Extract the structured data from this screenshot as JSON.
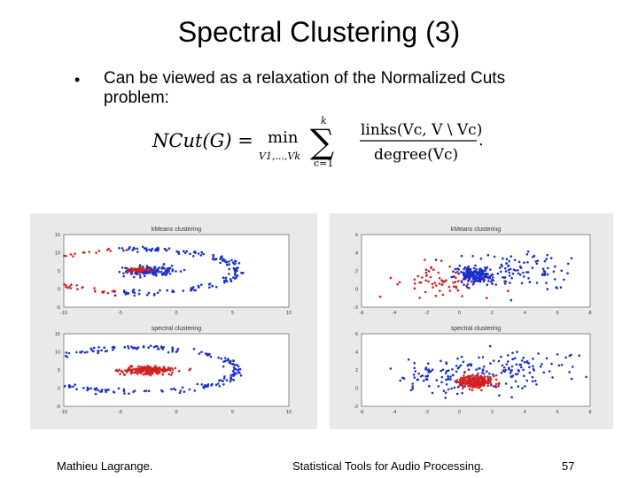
{
  "slide": {
    "title": "Spectral Clustering (3)",
    "bullet": "Can be viewed as a relaxation of the Normalized Cuts problem:",
    "formula": {
      "lhs": "NCut(G) =",
      "min": "min",
      "min_subscript": "V1,...,Vk",
      "sum_upper": "k",
      "sum_lower": "c=1",
      "numerator": "links(Vc, V \\ Vc)",
      "denominator": "degree(Vc)"
    },
    "footer": {
      "author": "Mathieu Lagrange.",
      "course": "Statistical Tools for Audio Processing.",
      "page": "57"
    }
  },
  "colors": {
    "red": "#d42020",
    "blue": "#1a2fc8",
    "panel": "#e9e9e9"
  },
  "chart_data": [
    {
      "type": "scatter",
      "title": "kMeans clustering",
      "xlim": [
        -10,
        10
      ],
      "ylim": [
        -5,
        15
      ],
      "xticks": [
        "-10",
        "-5",
        "0",
        "5",
        "10"
      ],
      "yticks": [
        "15",
        "10",
        "5",
        "0",
        "-5"
      ],
      "series": [
        {
          "color": "red",
          "shape": "ring-left",
          "cx": -3.5,
          "cy": 5,
          "rx": 9,
          "ry": 6,
          "n": 95,
          "angle_from": 100,
          "angle_to": 260
        },
        {
          "color": "blue",
          "shape": "ring-right",
          "cx": -3.5,
          "cy": 5,
          "rx": 9,
          "ry": 6,
          "n": 150,
          "angle_from": -100,
          "angle_to": 100
        },
        {
          "color": "blue",
          "shape": "blob",
          "cx": -2.5,
          "cy": 5,
          "sx": 1.2,
          "sy": 0.6,
          "n": 150
        },
        {
          "color": "red",
          "shape": "blob",
          "cx": -3.5,
          "cy": 5.2,
          "sx": 0.6,
          "sy": 0.35,
          "n": 40
        }
      ]
    },
    {
      "type": "scatter",
      "title": "kMeans clustering",
      "xlim": [
        -6,
        8
      ],
      "ylim": [
        -2,
        6
      ],
      "xticks": [
        "-6",
        "-4",
        "-2",
        "0",
        "2",
        "4",
        "6",
        "8"
      ],
      "yticks": [
        "6",
        "4",
        "2",
        "0",
        "-2"
      ],
      "series": [
        {
          "color": "red",
          "shape": "blob",
          "cx": -1.5,
          "cy": 0.8,
          "sx": 1.6,
          "sy": 0.9,
          "n": 70
        },
        {
          "color": "blue",
          "shape": "blob",
          "cx": 1.0,
          "cy": 1.5,
          "sx": 0.5,
          "sy": 0.35,
          "n": 200
        },
        {
          "color": "blue",
          "shape": "blob",
          "cx": 3.5,
          "cy": 2.0,
          "sx": 2.2,
          "sy": 1.0,
          "n": 110
        }
      ]
    },
    {
      "type": "scatter",
      "title": "spectral clustering",
      "xlim": [
        -10,
        10
      ],
      "ylim": [
        -5,
        15
      ],
      "xticks": [
        "-10",
        "-5",
        "0",
        "5",
        "10"
      ],
      "yticks": [
        "15",
        "10",
        "5",
        "0",
        "-5"
      ],
      "series": [
        {
          "color": "blue",
          "shape": "ring",
          "cx": -3.5,
          "cy": 5,
          "rx": 9,
          "ry": 6,
          "n": 240,
          "angle_from": 0,
          "angle_to": 360
        },
        {
          "color": "red",
          "shape": "blob",
          "cx": -2.5,
          "cy": 5,
          "sx": 1.1,
          "sy": 0.55,
          "n": 190
        }
      ]
    },
    {
      "type": "scatter",
      "title": "spectral clustering",
      "xlim": [
        -6,
        8
      ],
      "ylim": [
        -2,
        6
      ],
      "xticks": [
        "-6",
        "-4",
        "-2",
        "0",
        "2",
        "4",
        "6",
        "8"
      ],
      "yticks": [
        "6",
        "4",
        "2",
        "0",
        "-2"
      ],
      "series": [
        {
          "color": "blue",
          "shape": "blob",
          "cx": -0.5,
          "cy": 1.2,
          "sx": 2.0,
          "sy": 1.0,
          "n": 110
        },
        {
          "color": "blue",
          "shape": "blob",
          "cx": 3.5,
          "cy": 2.2,
          "sx": 2.0,
          "sy": 1.0,
          "n": 90
        },
        {
          "color": "red",
          "shape": "blob",
          "cx": 1.0,
          "cy": 0.7,
          "sx": 0.5,
          "sy": 0.35,
          "n": 200
        }
      ]
    }
  ]
}
